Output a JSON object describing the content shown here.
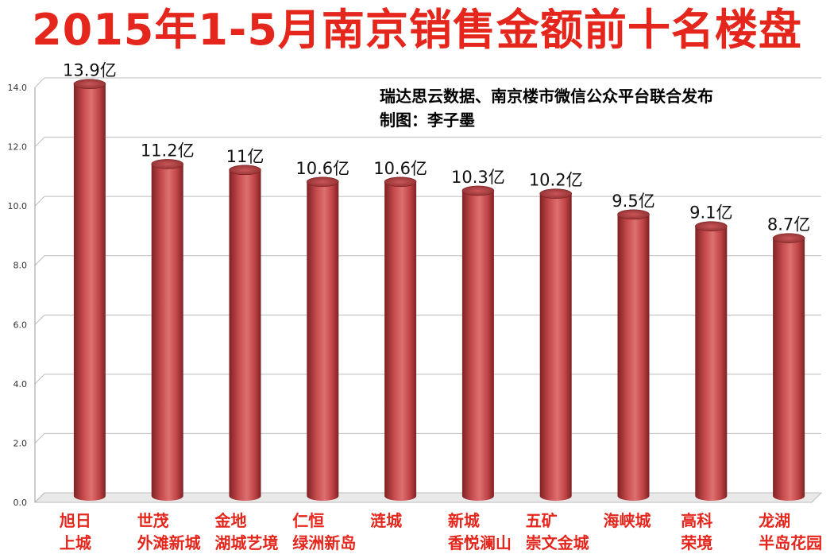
{
  "title": "2015年1-5月南京销售金额前十名楼盘",
  "source": {
    "line1": "瑞达思云数据、南京楼市微信公众平台联合发布",
    "line2": "制图：李子墨"
  },
  "colors": {
    "title": "#e4261c",
    "bar": "#c84a4c",
    "bar_dark": "#8a2a2c",
    "bar_light": "#e07a7a",
    "xlabel": "#e4261c",
    "grid": "#bcbcbc"
  },
  "chart_data": {
    "type": "bar",
    "style": "3d-cylinder",
    "title": "2015年1-5月南京销售金额前十名楼盘",
    "xlabel": "",
    "ylabel": "",
    "ylim": [
      0,
      14
    ],
    "yticks": [
      "0.0",
      "2.0",
      "4.0",
      "6.0",
      "8.0",
      "10.0",
      "12.0",
      "14.0"
    ],
    "grid": true,
    "categories": [
      [
        "旭日",
        "上城"
      ],
      [
        "世茂",
        "外滩新城"
      ],
      [
        "金地",
        "湖城艺境"
      ],
      [
        "仁恒",
        "绿洲新岛"
      ],
      [
        "涟城"
      ],
      [
        "新城",
        "香悦澜山"
      ],
      [
        "五矿",
        "崇文金城"
      ],
      [
        "海峡城"
      ],
      [
        "高科",
        "荣境"
      ],
      [
        "龙湖",
        "半岛花园"
      ]
    ],
    "values": [
      13.9,
      11.2,
      11,
      10.6,
      10.6,
      10.3,
      10.2,
      9.5,
      9.1,
      8.7
    ],
    "data_labels": [
      "13.9亿",
      "11.2亿",
      "11亿",
      "10.6亿",
      "10.6亿",
      "10.3亿",
      "10.2亿",
      "9.5亿",
      "9.1亿",
      "8.7亿"
    ]
  }
}
